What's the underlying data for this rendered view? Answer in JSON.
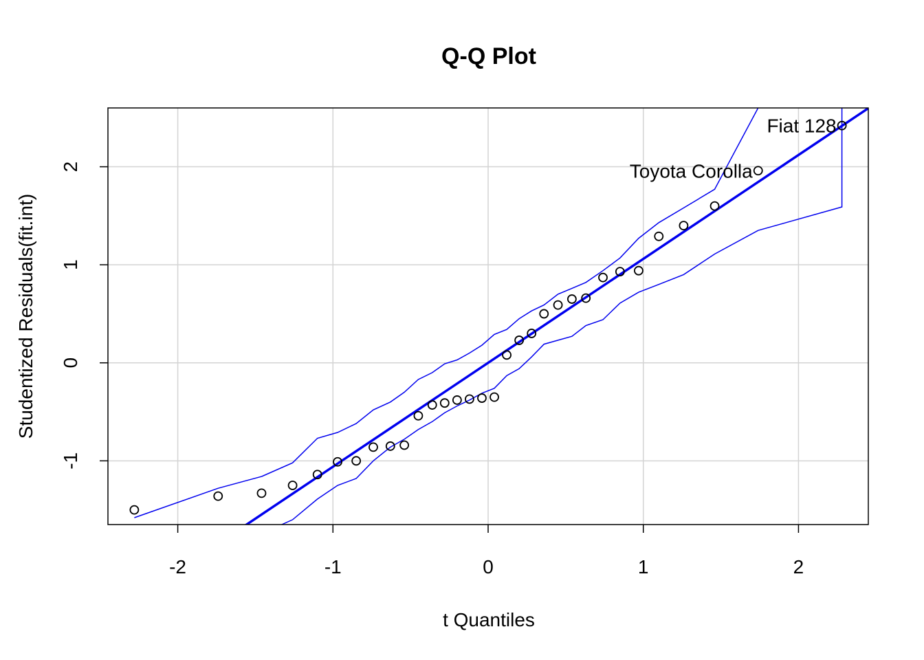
{
  "chart_data": {
    "type": "scatter",
    "title": "Q-Q Plot",
    "xlabel": "t Quantiles",
    "ylabel": "Studentized Residuals(fit.int)",
    "xlim": [
      -2.45,
      2.45
    ],
    "ylim": [
      -1.65,
      2.6
    ],
    "xticks": [
      -2,
      -1,
      0,
      1,
      2
    ],
    "yticks": [
      -1,
      0,
      1,
      2
    ],
    "xtick_labels": [
      "-2",
      "-1",
      "0",
      "1",
      "2"
    ],
    "ytick_labels": [
      "-1",
      "0",
      "1",
      "2"
    ],
    "grid": true,
    "points": [
      {
        "x": -2.28,
        "y": -1.5
      },
      {
        "x": -1.74,
        "y": -1.36
      },
      {
        "x": -1.46,
        "y": -1.33
      },
      {
        "x": -1.26,
        "y": -1.25
      },
      {
        "x": -1.1,
        "y": -1.14
      },
      {
        "x": -0.97,
        "y": -1.01
      },
      {
        "x": -0.85,
        "y": -1.0
      },
      {
        "x": -0.74,
        "y": -0.86
      },
      {
        "x": -0.63,
        "y": -0.85
      },
      {
        "x": -0.54,
        "y": -0.84
      },
      {
        "x": -0.45,
        "y": -0.54
      },
      {
        "x": -0.36,
        "y": -0.43
      },
      {
        "x": -0.28,
        "y": -0.41
      },
      {
        "x": -0.2,
        "y": -0.38
      },
      {
        "x": -0.12,
        "y": -0.37
      },
      {
        "x": -0.04,
        "y": -0.36
      },
      {
        "x": 0.04,
        "y": -0.35
      },
      {
        "x": 0.12,
        "y": 0.08
      },
      {
        "x": 0.2,
        "y": 0.23
      },
      {
        "x": 0.28,
        "y": 0.3
      },
      {
        "x": 0.36,
        "y": 0.5
      },
      {
        "x": 0.45,
        "y": 0.59
      },
      {
        "x": 0.54,
        "y": 0.65
      },
      {
        "x": 0.63,
        "y": 0.66
      },
      {
        "x": 0.74,
        "y": 0.87
      },
      {
        "x": 0.85,
        "y": 0.93
      },
      {
        "x": 0.97,
        "y": 0.94
      },
      {
        "x": 1.1,
        "y": 1.29
      },
      {
        "x": 1.26,
        "y": 1.4
      },
      {
        "x": 1.46,
        "y": 1.6
      },
      {
        "x": 1.74,
        "y": 1.96,
        "label": "Toyota Corolla"
      },
      {
        "x": 2.28,
        "y": 2.42,
        "label": "Fiat 128"
      }
    ],
    "reference_line": {
      "intercept": 0.0,
      "slope": 1.06
    },
    "upper_envelope": [
      [
        -2.28,
        -1.58
      ],
      [
        -1.74,
        -1.28
      ],
      [
        -1.46,
        -1.16
      ],
      [
        -1.26,
        -1.02
      ],
      [
        -1.1,
        -0.77
      ],
      [
        -0.97,
        -0.71
      ],
      [
        -0.85,
        -0.62
      ],
      [
        -0.74,
        -0.48
      ],
      [
        -0.63,
        -0.4
      ],
      [
        -0.54,
        -0.3
      ],
      [
        -0.45,
        -0.17
      ],
      [
        -0.36,
        -0.1
      ],
      [
        -0.28,
        -0.01
      ],
      [
        -0.2,
        0.03
      ],
      [
        -0.12,
        0.1
      ],
      [
        -0.04,
        0.18
      ],
      [
        0.04,
        0.29
      ],
      [
        0.12,
        0.34
      ],
      [
        0.2,
        0.45
      ],
      [
        0.28,
        0.53
      ],
      [
        0.36,
        0.59
      ],
      [
        0.45,
        0.7
      ],
      [
        0.54,
        0.76
      ],
      [
        0.63,
        0.82
      ],
      [
        0.74,
        0.94
      ],
      [
        0.85,
        1.07
      ],
      [
        0.97,
        1.27
      ],
      [
        1.1,
        1.43
      ],
      [
        1.26,
        1.58
      ],
      [
        1.46,
        1.77
      ],
      [
        1.74,
        2.6
      ]
    ],
    "lower_envelope": [
      [
        -1.33,
        -1.65
      ],
      [
        -1.26,
        -1.6
      ],
      [
        -1.1,
        -1.39
      ],
      [
        -0.97,
        -1.25
      ],
      [
        -0.85,
        -1.18
      ],
      [
        -0.74,
        -1.0
      ],
      [
        -0.63,
        -0.86
      ],
      [
        -0.54,
        -0.78
      ],
      [
        -0.45,
        -0.68
      ],
      [
        -0.36,
        -0.6
      ],
      [
        -0.28,
        -0.51
      ],
      [
        -0.2,
        -0.44
      ],
      [
        -0.12,
        -0.38
      ],
      [
        -0.04,
        -0.31
      ],
      [
        0.04,
        -0.26
      ],
      [
        0.12,
        -0.13
      ],
      [
        0.2,
        -0.06
      ],
      [
        0.28,
        0.06
      ],
      [
        0.36,
        0.19
      ],
      [
        0.45,
        0.23
      ],
      [
        0.54,
        0.27
      ],
      [
        0.63,
        0.38
      ],
      [
        0.74,
        0.44
      ],
      [
        0.85,
        0.61
      ],
      [
        0.97,
        0.72
      ],
      [
        1.1,
        0.8
      ],
      [
        1.26,
        0.9
      ],
      [
        1.46,
        1.11
      ],
      [
        1.74,
        1.35
      ],
      [
        2.28,
        1.59
      ],
      [
        2.28,
        2.6
      ]
    ],
    "colors": {
      "line": "#0000ee",
      "envelope": "#0000ee",
      "points": "#000000",
      "grid": "#d3d3d3",
      "frame": "#000000"
    }
  }
}
